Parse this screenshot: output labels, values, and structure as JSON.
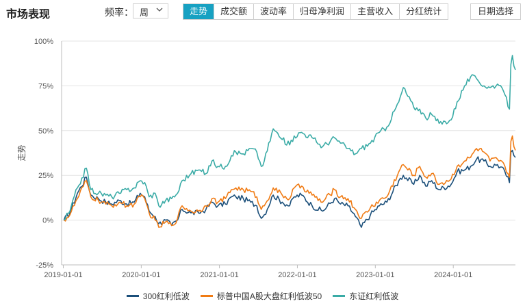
{
  "header": {
    "title": "市场表现",
    "freq_label": "频率：",
    "freq_value": "周",
    "tabs": [
      {
        "label": "走势",
        "active": true
      },
      {
        "label": "成交额",
        "active": false
      },
      {
        "label": "波动率",
        "active": false
      },
      {
        "label": "归母净利润",
        "active": false
      },
      {
        "label": "主营收入",
        "active": false
      },
      {
        "label": "分红统计",
        "active": false
      }
    ],
    "date_button": "日期选择",
    "accent_color": "#17a1c2"
  },
  "chart_data": {
    "type": "line",
    "ylabel": "走势",
    "ylim": [
      -25,
      100
    ],
    "yticks": [
      "100%",
      "75%",
      "50%",
      "25%",
      "0%",
      "-25%"
    ],
    "ytick_values": [
      100,
      75,
      50,
      25,
      0,
      -25
    ],
    "xlim": [
      "2018-12-24",
      "2024-10-18"
    ],
    "xticks": [
      "2019-01-01",
      "2020-01-01",
      "2021-01-01",
      "2022-01-01",
      "2023-01-01",
      "2024-01-01"
    ],
    "grid": "horizontal",
    "legend_position": "bottom",
    "series": [
      {
        "name": "300红利低波",
        "color": "#1b4f7a",
        "points": [
          [
            "2019-01-04",
            0
          ],
          [
            "2019-02-01",
            4
          ],
          [
            "2019-03-08",
            15
          ],
          [
            "2019-04-19",
            24
          ],
          [
            "2019-05-10",
            14
          ],
          [
            "2019-06-14",
            12
          ],
          [
            "2019-07-19",
            10
          ],
          [
            "2019-08-16",
            9
          ],
          [
            "2019-09-20",
            11
          ],
          [
            "2019-10-25",
            9
          ],
          [
            "2019-11-29",
            10
          ],
          [
            "2019-12-27",
            15
          ],
          [
            "2020-01-17",
            13
          ],
          [
            "2020-02-07",
            5
          ],
          [
            "2020-03-06",
            2
          ],
          [
            "2020-03-23",
            -2
          ],
          [
            "2020-04-24",
            0
          ],
          [
            "2020-05-22",
            -3
          ],
          [
            "2020-06-19",
            0
          ],
          [
            "2020-07-10",
            6
          ],
          [
            "2020-08-21",
            4
          ],
          [
            "2020-09-25",
            4
          ],
          [
            "2020-10-30",
            6
          ],
          [
            "2020-11-27",
            10
          ],
          [
            "2020-12-25",
            8
          ],
          [
            "2021-01-29",
            9
          ],
          [
            "2021-02-26",
            13
          ],
          [
            "2021-03-19",
            13
          ],
          [
            "2021-04-23",
            12
          ],
          [
            "2021-05-28",
            10
          ],
          [
            "2021-06-25",
            8
          ],
          [
            "2021-07-16",
            1
          ],
          [
            "2021-07-30",
            3
          ],
          [
            "2021-09-10",
            14
          ],
          [
            "2021-10-22",
            10
          ],
          [
            "2021-11-26",
            8
          ],
          [
            "2021-12-17",
            13
          ],
          [
            "2022-01-21",
            14
          ],
          [
            "2022-03-11",
            8
          ],
          [
            "2022-04-29",
            5
          ],
          [
            "2022-06-24",
            12
          ],
          [
            "2022-07-22",
            9
          ],
          [
            "2022-08-26",
            8
          ],
          [
            "2022-09-30",
            2
          ],
          [
            "2022-10-28",
            -4
          ],
          [
            "2022-12-09",
            3
          ],
          [
            "2023-01-20",
            8
          ],
          [
            "2023-02-24",
            10
          ],
          [
            "2023-04-21",
            22
          ],
          [
            "2023-05-12",
            25
          ],
          [
            "2023-06-30",
            20
          ],
          [
            "2023-07-28",
            25
          ],
          [
            "2023-08-25",
            19
          ],
          [
            "2023-09-22",
            22
          ],
          [
            "2023-10-27",
            17
          ],
          [
            "2023-12-22",
            20
          ],
          [
            "2024-01-19",
            27
          ],
          [
            "2024-02-23",
            28
          ],
          [
            "2024-03-22",
            30
          ],
          [
            "2024-04-19",
            34
          ],
          [
            "2024-05-24",
            33
          ],
          [
            "2024-06-21",
            30
          ],
          [
            "2024-07-26",
            31
          ],
          [
            "2024-08-30",
            27
          ],
          [
            "2024-09-20",
            21
          ],
          [
            "2024-09-27",
            38
          ],
          [
            "2024-10-04",
            39
          ],
          [
            "2024-10-11",
            36
          ],
          [
            "2024-10-18",
            35
          ]
        ]
      },
      {
        "name": "标普中国A股大盘红利低波50",
        "color": "#f07b14",
        "points": [
          [
            "2019-01-04",
            0
          ],
          [
            "2019-02-01",
            3
          ],
          [
            "2019-03-08",
            12
          ],
          [
            "2019-04-19",
            22
          ],
          [
            "2019-05-10",
            13
          ],
          [
            "2019-06-14",
            11
          ],
          [
            "2019-07-19",
            9
          ],
          [
            "2019-08-16",
            8
          ],
          [
            "2019-09-20",
            10
          ],
          [
            "2019-10-25",
            8
          ],
          [
            "2019-11-29",
            9
          ],
          [
            "2019-12-27",
            13
          ],
          [
            "2020-01-17",
            12
          ],
          [
            "2020-02-07",
            4
          ],
          [
            "2020-03-06",
            0
          ],
          [
            "2020-03-23",
            -4
          ],
          [
            "2020-04-24",
            -1
          ],
          [
            "2020-05-22",
            -3
          ],
          [
            "2020-06-19",
            1
          ],
          [
            "2020-07-10",
            8
          ],
          [
            "2020-08-21",
            5
          ],
          [
            "2020-09-25",
            5
          ],
          [
            "2020-10-30",
            8
          ],
          [
            "2020-11-27",
            12
          ],
          [
            "2020-12-25",
            10
          ],
          [
            "2021-01-29",
            12
          ],
          [
            "2021-02-26",
            17
          ],
          [
            "2021-03-19",
            18
          ],
          [
            "2021-04-23",
            17
          ],
          [
            "2021-05-28",
            16
          ],
          [
            "2021-06-25",
            13
          ],
          [
            "2021-07-16",
            6
          ],
          [
            "2021-07-30",
            8
          ],
          [
            "2021-09-10",
            18
          ],
          [
            "2021-10-22",
            14
          ],
          [
            "2021-11-26",
            12
          ],
          [
            "2021-12-17",
            18
          ],
          [
            "2022-01-21",
            19
          ],
          [
            "2022-03-11",
            14
          ],
          [
            "2022-04-29",
            10
          ],
          [
            "2022-06-24",
            17
          ],
          [
            "2022-07-22",
            13
          ],
          [
            "2022-08-26",
            12
          ],
          [
            "2022-09-30",
            6
          ],
          [
            "2022-10-28",
            1
          ],
          [
            "2022-12-09",
            7
          ],
          [
            "2023-01-20",
            11
          ],
          [
            "2023-02-24",
            13
          ],
          [
            "2023-04-21",
            27
          ],
          [
            "2023-05-12",
            31
          ],
          [
            "2023-06-30",
            25
          ],
          [
            "2023-07-28",
            30
          ],
          [
            "2023-08-25",
            24
          ],
          [
            "2023-09-22",
            26
          ],
          [
            "2023-10-27",
            20
          ],
          [
            "2023-12-22",
            23
          ],
          [
            "2024-01-19",
            30
          ],
          [
            "2024-02-23",
            33
          ],
          [
            "2024-03-22",
            35
          ],
          [
            "2024-04-19",
            40
          ],
          [
            "2024-05-24",
            38
          ],
          [
            "2024-06-21",
            33
          ],
          [
            "2024-07-26",
            34
          ],
          [
            "2024-08-30",
            30
          ],
          [
            "2024-09-20",
            24
          ],
          [
            "2024-09-27",
            44
          ],
          [
            "2024-10-04",
            47
          ],
          [
            "2024-10-11",
            41
          ],
          [
            "2024-10-18",
            39
          ]
        ]
      },
      {
        "name": "东证红利低波",
        "color": "#3aaba6",
        "points": [
          [
            "2019-01-04",
            0
          ],
          [
            "2019-02-01",
            5
          ],
          [
            "2019-03-08",
            18
          ],
          [
            "2019-04-19",
            29
          ],
          [
            "2019-05-10",
            17
          ],
          [
            "2019-06-14",
            15
          ],
          [
            "2019-07-19",
            14
          ],
          [
            "2019-08-16",
            13
          ],
          [
            "2019-09-20",
            15
          ],
          [
            "2019-10-25",
            17
          ],
          [
            "2019-11-29",
            18
          ],
          [
            "2019-12-27",
            22
          ],
          [
            "2020-01-17",
            21
          ],
          [
            "2020-02-07",
            13
          ],
          [
            "2020-03-06",
            15
          ],
          [
            "2020-03-23",
            8
          ],
          [
            "2020-04-24",
            11
          ],
          [
            "2020-05-22",
            12
          ],
          [
            "2020-06-19",
            15
          ],
          [
            "2020-07-10",
            22
          ],
          [
            "2020-08-21",
            26
          ],
          [
            "2020-09-25",
            28
          ],
          [
            "2020-10-30",
            26
          ],
          [
            "2020-11-27",
            33
          ],
          [
            "2020-12-25",
            30
          ],
          [
            "2021-01-29",
            30
          ],
          [
            "2021-02-26",
            36
          ],
          [
            "2021-03-19",
            38
          ],
          [
            "2021-04-23",
            37
          ],
          [
            "2021-05-28",
            40
          ],
          [
            "2021-06-25",
            38
          ],
          [
            "2021-07-16",
            30
          ],
          [
            "2021-07-30",
            33
          ],
          [
            "2021-09-10",
            51
          ],
          [
            "2021-10-22",
            45
          ],
          [
            "2021-11-26",
            42
          ],
          [
            "2021-12-17",
            47
          ],
          [
            "2022-01-21",
            49
          ],
          [
            "2022-03-11",
            46
          ],
          [
            "2022-04-29",
            41
          ],
          [
            "2022-06-24",
            46
          ],
          [
            "2022-07-22",
            43
          ],
          [
            "2022-08-26",
            40
          ],
          [
            "2022-09-30",
            37
          ],
          [
            "2022-10-28",
            40
          ],
          [
            "2022-12-09",
            43
          ],
          [
            "2023-01-20",
            49
          ],
          [
            "2023-02-24",
            52
          ],
          [
            "2023-04-21",
            66
          ],
          [
            "2023-05-12",
            74
          ],
          [
            "2023-06-30",
            63
          ],
          [
            "2023-07-28",
            62
          ],
          [
            "2023-08-25",
            57
          ],
          [
            "2023-09-22",
            59
          ],
          [
            "2023-10-27",
            54
          ],
          [
            "2023-12-22",
            56
          ],
          [
            "2024-01-19",
            66
          ],
          [
            "2024-02-23",
            75
          ],
          [
            "2024-03-22",
            80
          ],
          [
            "2024-04-19",
            79
          ],
          [
            "2024-05-24",
            75
          ],
          [
            "2024-06-21",
            74
          ],
          [
            "2024-07-26",
            76
          ],
          [
            "2024-08-30",
            70
          ],
          [
            "2024-09-20",
            62
          ],
          [
            "2024-09-27",
            87
          ],
          [
            "2024-10-04",
            92
          ],
          [
            "2024-10-11",
            86
          ],
          [
            "2024-10-18",
            84
          ]
        ]
      }
    ]
  }
}
